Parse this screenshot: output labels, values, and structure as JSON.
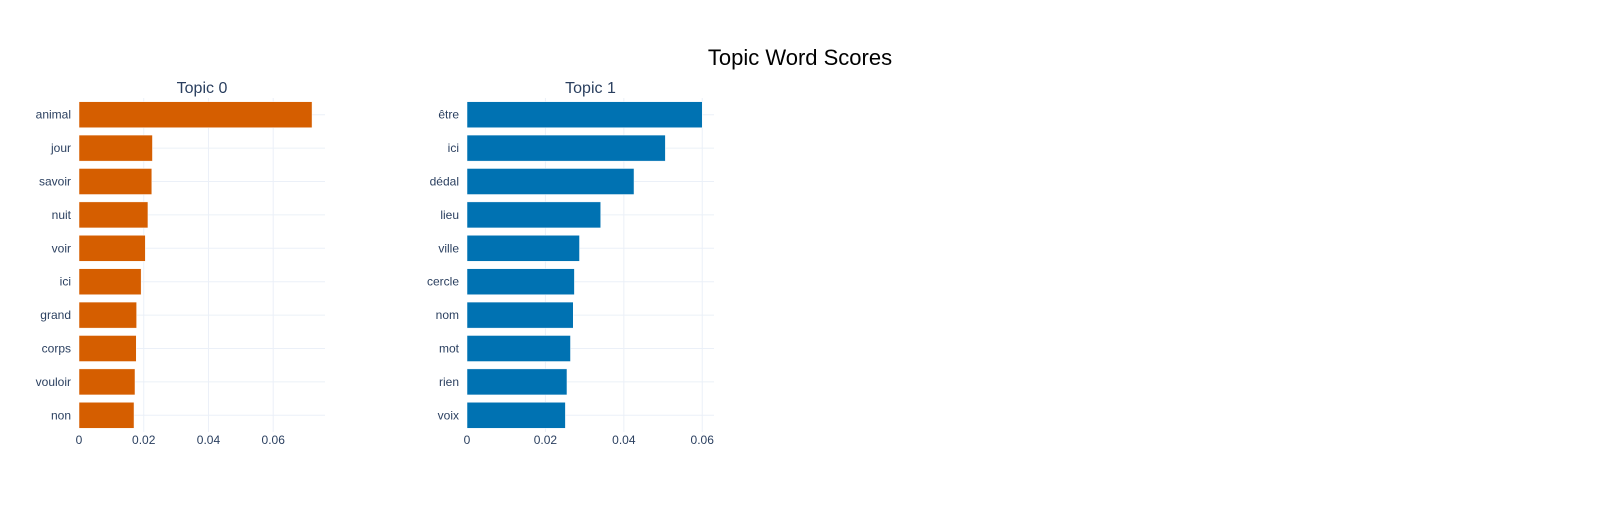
{
  "chart_data": {
    "type": "bar",
    "orientation": "horizontal",
    "title": "Topic Word Scores",
    "grid": true,
    "legend": "none",
    "subplots": [
      {
        "title": "Topic 0",
        "color": "#D55E00",
        "xlim": [
          0,
          0.076
        ],
        "xticks": [
          0,
          0.02,
          0.04,
          0.06
        ],
        "xtick_labels": [
          "0",
          "0.02",
          "0.04",
          "0.06"
        ],
        "categories": [
          "animal",
          "jour",
          "savoir",
          "nuit",
          "voir",
          "ici",
          "grand",
          "corps",
          "vouloir",
          "non"
        ],
        "values": [
          0.072,
          0.0227,
          0.0225,
          0.0213,
          0.0205,
          0.0192,
          0.0178,
          0.0177,
          0.0173,
          0.017
        ]
      },
      {
        "title": "Topic 1",
        "color": "#0072B2",
        "xlim": [
          0,
          0.063
        ],
        "xticks": [
          0,
          0.02,
          0.04,
          0.06
        ],
        "xtick_labels": [
          "0",
          "0.02",
          "0.04",
          "0.06"
        ],
        "categories": [
          "être",
          "ici",
          "dédal",
          "lieu",
          "ville",
          "cercle",
          "nom",
          "mot",
          "rien",
          "voix"
        ],
        "values": [
          0.06,
          0.0506,
          0.0426,
          0.0341,
          0.0287,
          0.0274,
          0.0271,
          0.0264,
          0.0255,
          0.0251
        ]
      }
    ]
  }
}
